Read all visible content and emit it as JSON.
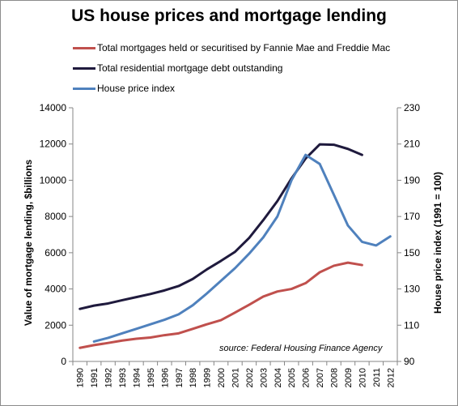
{
  "chart_data": {
    "type": "line",
    "title": "US house prices and mortgage lending",
    "x": [
      1990,
      1991,
      1992,
      1993,
      1994,
      1995,
      1996,
      1997,
      1998,
      1999,
      2000,
      2001,
      2002,
      2003,
      2004,
      2005,
      2006,
      2007,
      2008,
      2009,
      2010,
      2011,
      2012
    ],
    "xlabel": "",
    "ylabel": "Value of mortgage lending, $billions",
    "ylim": [
      0,
      14000
    ],
    "y_ticks": [
      0,
      2000,
      4000,
      6000,
      8000,
      10000,
      12000,
      14000
    ],
    "y2label": "House price index (1991 = 100)",
    "y2lim": [
      90,
      230
    ],
    "y2_ticks": [
      90,
      110,
      130,
      150,
      170,
      190,
      210,
      230
    ],
    "grid": false,
    "legend": "top-left",
    "series": [
      {
        "name": "Total mortgages  held or securitised by Fannie Mae and Freddie Mac",
        "axis": "left",
        "color": "#c0504d",
        "values": [
          750,
          900,
          1020,
          1150,
          1250,
          1320,
          1450,
          1550,
          1800,
          2050,
          2280,
          2700,
          3130,
          3580,
          3860,
          4000,
          4320,
          4920,
          5280,
          5450,
          5320,
          null,
          null
        ]
      },
      {
        "name": "Total residential mortgage debt outstanding",
        "axis": "left",
        "color": "#1f1a3d",
        "values": [
          2900,
          3080,
          3200,
          3380,
          3550,
          3720,
          3920,
          4160,
          4550,
          5080,
          5550,
          6050,
          6820,
          7800,
          8850,
          10100,
          11200,
          11980,
          11960,
          11730,
          11400,
          null,
          null
        ]
      },
      {
        "name": "House price index",
        "axis": "right",
        "color": "#4f81bd",
        "values": [
          null,
          101,
          103,
          105.5,
          108,
          110.5,
          113,
          116,
          121,
          127.5,
          134.5,
          141.5,
          149.5,
          158.5,
          170,
          190,
          204,
          199,
          182,
          165,
          156,
          154,
          159
        ]
      }
    ],
    "annotations": [
      "source: Federal Housing Finance Agency"
    ],
    "background": "#ffffff"
  }
}
